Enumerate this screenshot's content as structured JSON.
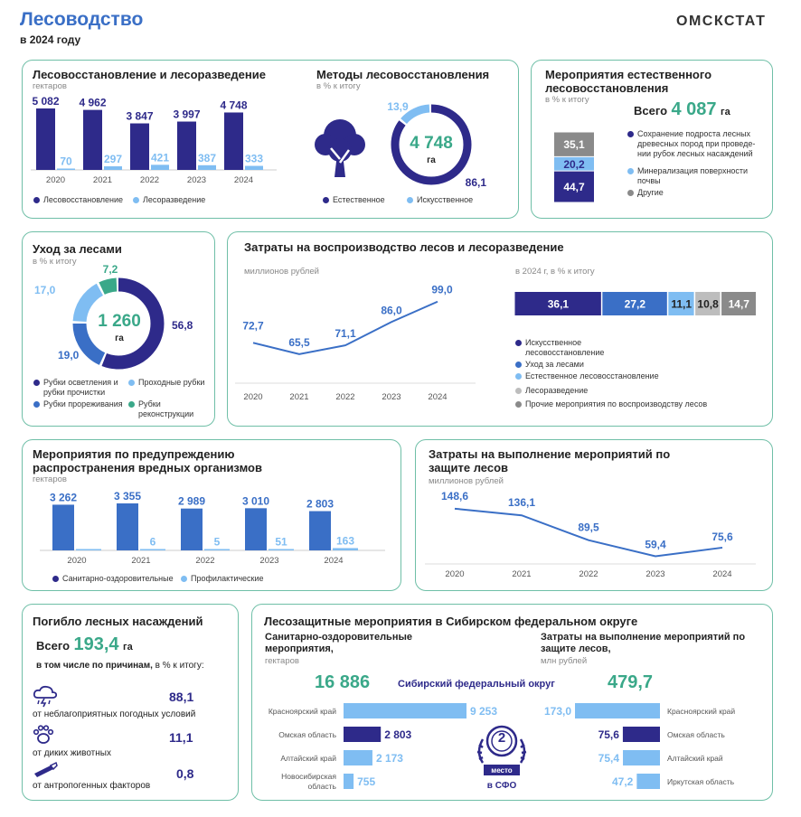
{
  "header": {
    "title": "Лесоводство",
    "subtitle": "в 2024 году",
    "brand": "ОМСКСТАТ"
  },
  "colors": {
    "navy": "#2e2a8a",
    "light": "#7fbdf2",
    "mid": "#3a6fc6",
    "teal": "#3aa889",
    "gray": "#8a8a8a",
    "lightgray": "#bdbdbd",
    "border": "#6fbfa7"
  },
  "reforest": {
    "title": "Лесовосстановление и лесоразведение",
    "unit": "гектаров",
    "chart_data": {
      "type": "bar",
      "categories": [
        "2020",
        "2021",
        "2022",
        "2023",
        "2024"
      ],
      "series": [
        {
          "name": "Лесовосстановление",
          "values": [
            5082,
            4962,
            3847,
            3997,
            4748
          ],
          "labels": [
            "5 082",
            "4 962",
            "3 847",
            "3 997",
            "4 748"
          ]
        },
        {
          "name": "Лесоразведение",
          "values": [
            70,
            297,
            421,
            387,
            333
          ],
          "labels": [
            "70",
            "297",
            "421",
            "387",
            "333"
          ]
        }
      ]
    }
  },
  "methods": {
    "title": "Методы лесовосстановления",
    "unit": "в % к итогу",
    "center_value": "4 748",
    "center_unit": "га",
    "chart_data": {
      "type": "pie",
      "labels": [
        "Естественное",
        "Искусственное"
      ],
      "values": [
        86.1,
        13.9
      ],
      "value_labels": [
        "86,1",
        "13,9"
      ]
    }
  },
  "natural": {
    "title": "Мероприятия естественного лесовосстановления",
    "unit": "в % к итогу",
    "total_label": "Всего",
    "total_value": "4 087",
    "total_unit": "га",
    "chart_data": {
      "type": "bar",
      "stacked": true,
      "labels": [
        "Сохранение подроста лесных древесных пород при проведе-нии рубок лесных насаждений",
        "Минерализация поверхности почвы",
        "Другие"
      ],
      "values": [
        44.7,
        20.2,
        35.1
      ],
      "value_labels": [
        "44,7",
        "20,2",
        "35,1"
      ]
    }
  },
  "care": {
    "title": "Уход за лесами",
    "unit": "в % к итогу",
    "center_value": "1 260",
    "center_unit": "га",
    "chart_data": {
      "type": "pie",
      "labels": [
        "Рубки осветления и рубки прочистки",
        "Рубки прореживания",
        "Проходные рубки",
        "Рубки реконструкции"
      ],
      "values": [
        56.8,
        19.0,
        17.0,
        7.2
      ],
      "value_labels": [
        "56,8",
        "19,0",
        "17,0",
        "7,2"
      ]
    }
  },
  "costs": {
    "title": "Затраты на воспроизводство лесов и лесоразведение",
    "unit": "миллионов рублей",
    "share_unit": "в 2024 г, в % к итогу",
    "chart_data": [
      {
        "type": "line",
        "x": [
          "2020",
          "2021",
          "2022",
          "2023",
          "2024"
        ],
        "values": [
          72.7,
          65.5,
          71.1,
          86.0,
          99.0
        ],
        "labels": [
          "72,7",
          "65,5",
          "71,1",
          "86,0",
          "99,0"
        ]
      },
      {
        "type": "bar",
        "stacked": true,
        "labels": [
          "Искусственное лесовосстановление",
          "Уход за лесами",
          "Естественное лесовосстановление",
          "Лесоразведение",
          "Прочие мероприятия по воспроизводству лесов"
        ],
        "values": [
          36.1,
          27.2,
          11.1,
          10.8,
          14.7
        ],
        "value_labels": [
          "36,1",
          "27,2",
          "11,1",
          "10,8",
          "14,7"
        ]
      }
    ]
  },
  "pests": {
    "title": "Мероприятия по предупреждению распространения вредных организмов",
    "unit": "гектаров",
    "chart_data": {
      "type": "bar",
      "categories": [
        "2020",
        "2021",
        "2022",
        "2023",
        "2024"
      ],
      "series": [
        {
          "name": "Санитарно-оздоровительные",
          "values": [
            3262,
            3355,
            2989,
            3010,
            2803
          ],
          "labels": [
            "3 262",
            "3 355",
            "2 989",
            "3 010",
            "2 803"
          ]
        },
        {
          "name": "Профилактические",
          "values": [
            0,
            6,
            5,
            51,
            163
          ],
          "labels": [
            "",
            "6",
            "5",
            "51",
            "163"
          ]
        }
      ]
    }
  },
  "protect": {
    "title": "Затраты на выполнение мероприятий по защите лесов",
    "unit": "миллионов рублей",
    "chart_data": {
      "type": "line",
      "x": [
        "2020",
        "2021",
        "2022",
        "2023",
        "2024"
      ],
      "values": [
        148.6,
        136.1,
        89.5,
        59.4,
        75.6
      ],
      "labels": [
        "148,6",
        "136,1",
        "89,5",
        "59,4",
        "75,6"
      ]
    }
  },
  "loss": {
    "title": "Погибло лесных насаждений",
    "total_label": "Всего",
    "total_value": "193,4",
    "total_unit": "га",
    "causes_bold": "в том числе по причинам,",
    "causes_tail": " в % к итогу:",
    "items": [
      {
        "label": "от неблагоприятных погодных условий",
        "value": "88,1"
      },
      {
        "label": "от диких животных",
        "value": "11,1"
      },
      {
        "label": "от антропогенных факторов",
        "value": "0,8"
      }
    ]
  },
  "sfo": {
    "title": "Лесозащитные мероприятия в Сибирском федеральном округе",
    "left_title": "Санитарно-оздоровительные мероприятия,",
    "left_unit": "гектаров",
    "left_total": "16 886",
    "right_title": "Затраты на выполнение мероприятий по защите лесов,",
    "right_unit": "млн рублей",
    "right_total": "479,7",
    "center_label": "Сибирский федеральный округ",
    "medal_word": "место",
    "medal_place": "в СФО",
    "medal_number": "2",
    "chart_data": [
      {
        "type": "bar",
        "orientation": "horizontal",
        "categories": [
          "Красноярский край",
          "Омская область",
          "Алтайский край",
          "Новосибирская область"
        ],
        "values": [
          9253,
          2803,
          2173,
          755
        ],
        "labels": [
          "9 253",
          "2 803",
          "2 173",
          "755"
        ]
      },
      {
        "type": "bar",
        "orientation": "horizontal",
        "categories": [
          "Красноярский край",
          "Омская область",
          "Алтайский край",
          "Иркутская область"
        ],
        "values": [
          173.0,
          75.6,
          75.4,
          47.2
        ],
        "labels": [
          "173,0",
          "75,6",
          "75,4",
          "47,2"
        ]
      }
    ]
  }
}
